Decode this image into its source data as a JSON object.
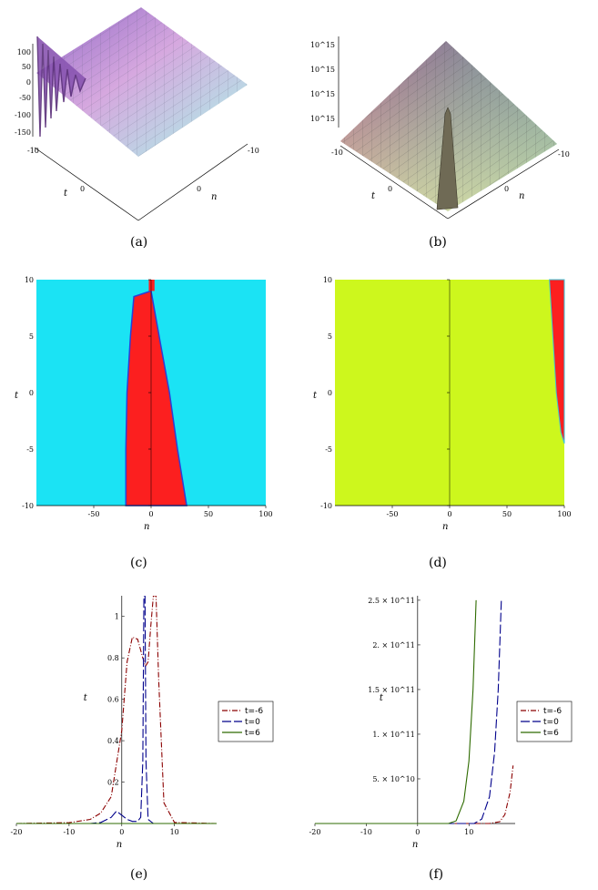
{
  "figure": {
    "captions": {
      "a": "(a)",
      "b": "(b)",
      "c": "(c)",
      "d": "(d)",
      "e": "(e)",
      "f": "(f)"
    }
  },
  "chart_data": [
    {
      "id": "a",
      "type": "surface",
      "zticks": [
        "100",
        "50",
        "0",
        "-50",
        "-100",
        "-150"
      ],
      "t_axis": {
        "label": "t",
        "ticks": [
          "-10",
          "0"
        ]
      },
      "n_axis": {
        "label": "n",
        "ticks": [
          "0",
          "-10"
        ]
      },
      "colors": [
        "#9b6fc8",
        "#d7a6dd",
        "#a9e1e8",
        "#8ad8d8"
      ]
    },
    {
      "id": "b",
      "type": "surface",
      "zticks": [
        "10^15",
        "10^15",
        "10^15",
        "10^15"
      ],
      "t_axis": {
        "label": "t",
        "ticks": [
          "-10",
          "0"
        ]
      },
      "n_axis": {
        "label": "n",
        "ticks": [
          "0",
          "-10"
        ]
      },
      "colors": [
        "#c9677f",
        "#7db8a0",
        "#c9e39f",
        "#e6d7a6"
      ]
    },
    {
      "id": "c",
      "type": "heatmap",
      "xlabel": "n",
      "ylabel": "t",
      "xticks": [
        "-50",
        "0",
        "50",
        "100"
      ],
      "yticks": [
        "10",
        "5",
        "0",
        "-5",
        "-10"
      ],
      "xlim": [
        -100,
        100
      ],
      "ylim": [
        -10,
        10
      ],
      "background_color": "#1be3f4",
      "region_color": "#fc1f1f",
      "region_left_boundary": [
        [
          -22,
          -10
        ],
        [
          -22,
          -5
        ],
        [
          -21,
          0
        ],
        [
          -18,
          5
        ],
        [
          -15,
          8.5
        ]
      ],
      "region_right_boundary": [
        [
          31,
          -10
        ],
        [
          23,
          -5
        ],
        [
          16,
          0
        ],
        [
          7,
          5
        ],
        [
          0,
          9
        ]
      ]
    },
    {
      "id": "d",
      "type": "heatmap",
      "xlabel": "n",
      "ylabel": "t",
      "xticks": [
        "-50",
        "0",
        "50",
        "100"
      ],
      "yticks": [
        "10",
        "5",
        "0",
        "-5",
        "-10"
      ],
      "xlim": [
        -100,
        100
      ],
      "ylim": [
        -10,
        10
      ],
      "background_color": "#cdf71d",
      "region_color": "#fc1f1f",
      "region_left_boundary": [
        [
          87,
          10
        ],
        [
          90,
          5
        ],
        [
          93,
          0
        ],
        [
          97,
          -3.5
        ],
        [
          100,
          -4.5
        ]
      ]
    },
    {
      "id": "e",
      "type": "line",
      "xlabel": "n",
      "ylabel": "t",
      "xticks": [
        "-20",
        "-10",
        "0",
        "10"
      ],
      "yticks": [
        "0.2",
        "0.4",
        "0.6",
        "0.8",
        "1"
      ],
      "xlim": [
        -20,
        18
      ],
      "ylim": [
        0,
        1.1
      ],
      "series": [
        {
          "name": "t=-6",
          "color": "#8b0000",
          "dash": "6,2,1,2",
          "x": [
            -20,
            -10,
            -6,
            -4,
            -2,
            0,
            1,
            2,
            3,
            4,
            4.5,
            5,
            5.5,
            6,
            6.5,
            7,
            8,
            10,
            18
          ],
          "y": [
            0,
            0.004,
            0.02,
            0.05,
            0.13,
            0.45,
            0.78,
            0.9,
            0.89,
            0.8,
            0.76,
            0.78,
            0.95,
            1.1,
            1.1,
            0.7,
            0.1,
            0.005,
            0
          ]
        },
        {
          "name": "t=0",
          "color": "#00008b",
          "dash": "10,3",
          "x": [
            -20,
            -6,
            -4,
            -2,
            -1,
            0,
            1,
            2,
            3,
            3.6,
            4,
            4.2,
            4.4,
            4.6,
            5,
            6,
            8,
            18
          ],
          "y": [
            0,
            0,
            0.005,
            0.03,
            0.06,
            0.04,
            0.02,
            0.01,
            0.01,
            0.03,
            0.3,
            1.1,
            1.1,
            0.3,
            0.02,
            0,
            0,
            0
          ]
        },
        {
          "name": "t=6",
          "color": "#2e6b00",
          "dash": "",
          "x": [
            -20,
            18
          ],
          "y": [
            0,
            0
          ]
        }
      ]
    },
    {
      "id": "f",
      "type": "line",
      "xlabel": "n",
      "ylabel": "t",
      "xticks": [
        "-20",
        "-10",
        "0",
        "10"
      ],
      "yticks": [
        "5. × 10^10",
        "1. × 10^11",
        "1.5 × 10^11",
        "2. × 10^11",
        "2.5 × 10^11"
      ],
      "xlim": [
        -20,
        19
      ],
      "ylim": [
        0,
        255000000000.0
      ],
      "series": [
        {
          "name": "t=-6",
          "color": "#8b0000",
          "dash": "6,2,1,2",
          "x": [
            -20,
            14,
            16,
            17,
            18,
            18.6
          ],
          "y": [
            0,
            0,
            2000000000.0,
            10000000000.0,
            35000000000.0,
            65000000000.0
          ]
        },
        {
          "name": "t=0",
          "color": "#00008b",
          "dash": "10,3",
          "x": [
            -20,
            11,
            12.5,
            14,
            15,
            15.7,
            16.3
          ],
          "y": [
            0,
            0,
            5000000000.0,
            30000000000.0,
            80000000000.0,
            150000000000.0,
            250000000000.0
          ]
        },
        {
          "name": "t=6",
          "color": "#2e6b00",
          "dash": "",
          "x": [
            -20,
            6,
            7.5,
            9,
            10,
            10.8,
            11.4
          ],
          "y": [
            0,
            0,
            3000000000.0,
            25000000000.0,
            70000000000.0,
            150000000000.0,
            250000000000.0
          ]
        }
      ]
    }
  ]
}
